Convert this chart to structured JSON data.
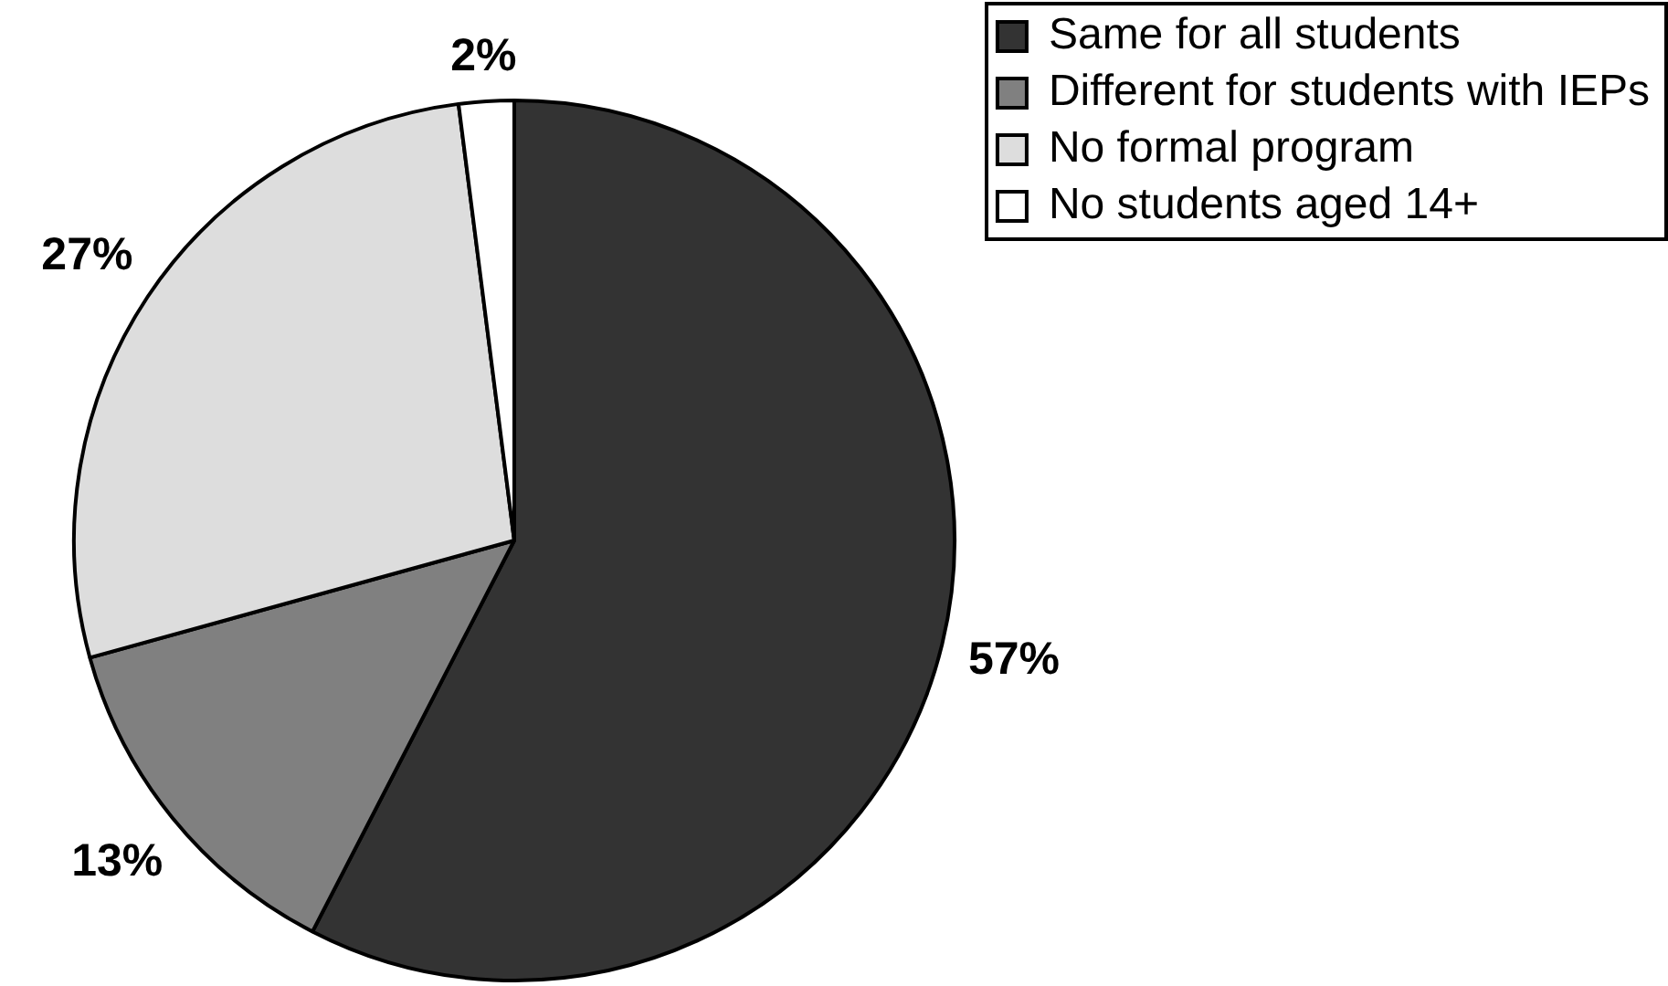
{
  "chart_data": {
    "type": "pie",
    "categories": [
      "Same for all students",
      "Different for students with IEPs",
      "No formal program",
      "No students aged 14+"
    ],
    "values": [
      57,
      13,
      27,
      2
    ],
    "colors": [
      "#333333",
      "#808080",
      "#dddddd",
      "#ffffff"
    ],
    "value_labels": [
      "57%",
      "13%",
      "27%",
      "2%"
    ],
    "legend": "top right"
  }
}
